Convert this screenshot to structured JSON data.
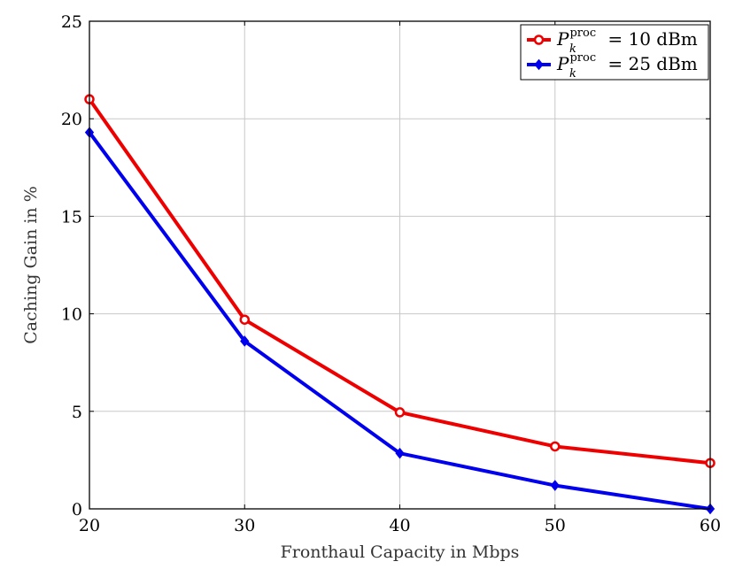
{
  "chart_data": {
    "type": "line",
    "title": "",
    "xlabel": "Fronthaul Capacity in Mbps",
    "ylabel": "Caching Gain in %",
    "x": [
      20,
      30,
      40,
      50,
      60
    ],
    "xticks": [
      20,
      30,
      40,
      50,
      60
    ],
    "yticks": [
      0,
      5,
      10,
      15,
      20,
      25
    ],
    "xlim": [
      20,
      60
    ],
    "ylim": [
      0,
      25
    ],
    "grid": true,
    "legend_position": "top-right",
    "series": [
      {
        "name": "P_k^proc = 10 dBm",
        "legend_base": "P",
        "legend_sub": "k",
        "legend_sup": "proc",
        "legend_rest": " = 10 dBm",
        "color": "#ee0000",
        "marker": "circle",
        "values": [
          21.0,
          9.7,
          4.95,
          3.2,
          2.35
        ]
      },
      {
        "name": "P_k^proc = 25 dBm",
        "legend_base": "P",
        "legend_sub": "k",
        "legend_sup": "proc",
        "legend_rest": " = 25 dBm",
        "color": "#0000ee",
        "marker": "diamond",
        "values": [
          19.3,
          8.6,
          2.85,
          1.2,
          0.0
        ]
      }
    ]
  }
}
